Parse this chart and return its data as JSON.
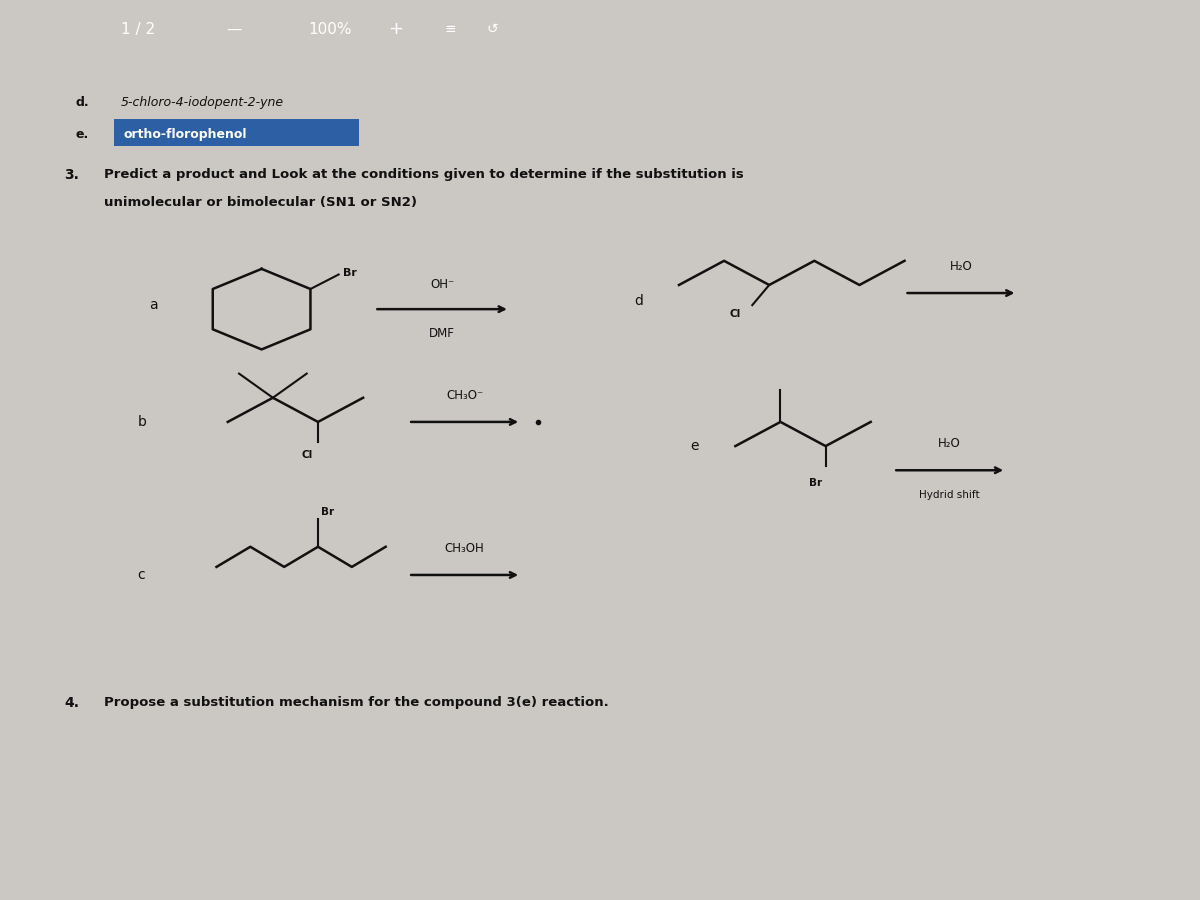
{
  "bg_color": "#cbc7c2",
  "toolbar_bg": "#2a2a2a",
  "page_bg": "#e0ddd8",
  "text_color": "#111111",
  "highlight_color": "#2c5fa3",
  "highlight_text_color": "#ffffff",
  "item_d_text": "5-chloro-4-iodopent-2-yne",
  "item_e_text": "ortho-florophenol",
  "question3_line1": "Predict a product and Look at the conditions given to determine if the substitution is",
  "question3_line2": "unimolecular or bimolecular (SN1 or SN2)",
  "question4_text": "Propose a substitution mechanism for the compound 3(e) reaction.",
  "toolbar_text1": "1 / 2",
  "toolbar_text2": "100%",
  "reagent_OH": "OH⁻",
  "reagent_DMF": "DMF",
  "reagent_CH3O": "CH₃O⁻",
  "reagent_H2O": "H₂O",
  "reagent_CH3OH": "CH₃OH",
  "reagent_hydrid": "Hydrid shift",
  "sub_Br": "Br",
  "sub_Cl": "Cl"
}
